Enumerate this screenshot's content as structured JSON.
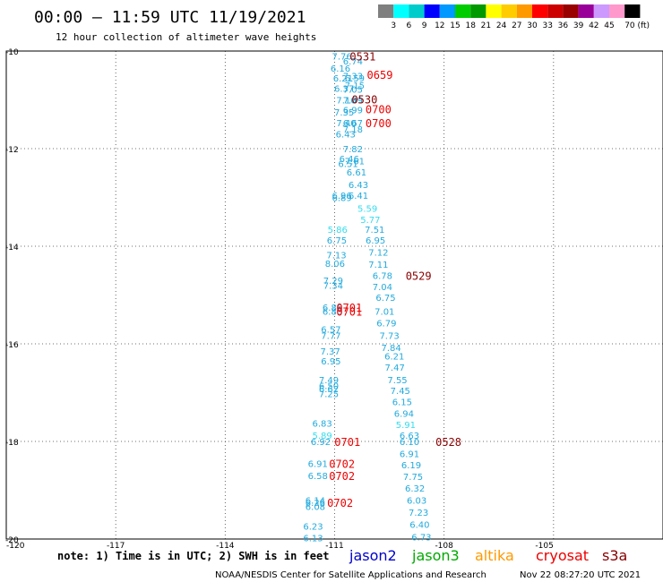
{
  "header": {
    "title": "00:00 — 11:59 UTC 11/19/2021",
    "subtitle": "12 hour collection of altimeter wave heights"
  },
  "colorbar": {
    "labels": [
      "3",
      "6",
      "9",
      "12",
      "15",
      "18",
      "21",
      "24",
      "27",
      "30",
      "33",
      "36",
      "39",
      "42",
      "45",
      "70 (ft)"
    ],
    "colors": [
      "#7f7f7f",
      "#00ffff",
      "#00cccc",
      "#0000ff",
      "#0099ff",
      "#00cc00",
      "#009900",
      "#ffff00",
      "#ffcc00",
      "#ff9900",
      "#ff0000",
      "#cc0000",
      "#990000",
      "#990099",
      "#cc99ff",
      "#ff99cc",
      "#000000"
    ]
  },
  "footer": {
    "note": "note: 1) Time is in UTC; 2) SWH is in feet",
    "credit": "NOAA/NESDIS Center for Satellite Applications and Research",
    "timestamp": "Nov 22 08:27:20 UTC 2021"
  },
  "chart_data": {
    "type": "scatter",
    "xlim": [
      -120,
      -102
    ],
    "ylim": [
      -20,
      -10
    ],
    "xticks": [
      -120,
      -117,
      -114,
      -111,
      -108,
      -105
    ],
    "xtick_labels": [
      "-120",
      "-117",
      "-114",
      "-111",
      "-108",
      "-105"
    ],
    "yticks": [
      -10,
      -12,
      -14,
      -16,
      -18,
      -20
    ],
    "grid": true,
    "legend": [
      {
        "name": "jason2",
        "color": "#0000cc"
      },
      {
        "name": "jason3",
        "color": "#00aa00"
      },
      {
        "name": "altika",
        "color": "#ff9900"
      },
      {
        "name": "cryosat",
        "color": "#ee0000"
      },
      {
        "name": "s3a",
        "color": "#880000"
      }
    ],
    "wave_color": "#22aadd",
    "light_wave_color": "#33ddee",
    "wave_heights": [
      {
        "x": -110.8,
        "y": -10.1,
        "v": "7.76"
      },
      {
        "x": -110.5,
        "y": -10.2,
        "v": "6.74"
      },
      {
        "x": -110.84,
        "y": -10.35,
        "v": "6.16"
      },
      {
        "x": -110.5,
        "y": -10.5,
        "v": "7.33"
      },
      {
        "x": -110.77,
        "y": -10.55,
        "v": "6.21"
      },
      {
        "x": -110.45,
        "y": -10.55,
        "v": "6.59"
      },
      {
        "x": -110.45,
        "y": -10.7,
        "v": "7.15"
      },
      {
        "x": -110.74,
        "y": -10.76,
        "v": "6.37"
      },
      {
        "x": -110.5,
        "y": -10.78,
        "v": "7.05"
      },
      {
        "x": -110.68,
        "y": -11.0,
        "v": "7.16"
      },
      {
        "x": -110.5,
        "y": -11.0,
        "v": "7.09"
      },
      {
        "x": -110.5,
        "y": -11.2,
        "v": "6.99"
      },
      {
        "x": -110.74,
        "y": -11.25,
        "v": "7.35"
      },
      {
        "x": -110.68,
        "y": -11.47,
        "v": "7.40"
      },
      {
        "x": -110.5,
        "y": -11.47,
        "v": "6.67"
      },
      {
        "x": -110.5,
        "y": -11.6,
        "v": "7.18"
      },
      {
        "x": -110.7,
        "y": -11.7,
        "v": "6.43"
      },
      {
        "x": -110.5,
        "y": -12.0,
        "v": "7.82"
      },
      {
        "x": -110.6,
        "y": -12.2,
        "v": "6.46"
      },
      {
        "x": -110.45,
        "y": -12.25,
        "v": "7.61"
      },
      {
        "x": -110.63,
        "y": -12.3,
        "v": "6.51"
      },
      {
        "x": -110.4,
        "y": -12.48,
        "v": "6.61"
      },
      {
        "x": -110.35,
        "y": -12.73,
        "v": "6.43"
      },
      {
        "x": -110.8,
        "y": -12.95,
        "v": "6.96"
      },
      {
        "x": -110.35,
        "y": -12.95,
        "v": "6.41"
      },
      {
        "x": -110.8,
        "y": -13.0,
        "v": "6.89"
      },
      {
        "x": -110.1,
        "y": -13.22,
        "v": "5.59"
      },
      {
        "x": -110.02,
        "y": -13.45,
        "v": "5.77"
      },
      {
        "x": -110.92,
        "y": -13.65,
        "v": "5.86"
      },
      {
        "x": -109.9,
        "y": -13.65,
        "v": "7.51"
      },
      {
        "x": -110.94,
        "y": -13.87,
        "v": "6.75"
      },
      {
        "x": -109.88,
        "y": -13.87,
        "v": "6.95"
      },
      {
        "x": -110.95,
        "y": -14.17,
        "v": "7.13"
      },
      {
        "x": -109.8,
        "y": -14.12,
        "v": "7.12"
      },
      {
        "x": -110.99,
        "y": -14.35,
        "v": "8.06"
      },
      {
        "x": -109.8,
        "y": -14.37,
        "v": "7.11"
      },
      {
        "x": -109.69,
        "y": -14.6,
        "v": "6.78"
      },
      {
        "x": -111.04,
        "y": -14.7,
        "v": "7.29"
      },
      {
        "x": -111.04,
        "y": -14.8,
        "v": "7.34"
      },
      {
        "x": -109.69,
        "y": -14.83,
        "v": "7.04"
      },
      {
        "x": -109.6,
        "y": -15.05,
        "v": "6.75"
      },
      {
        "x": -111.06,
        "y": -15.25,
        "v": "6.86"
      },
      {
        "x": -111.06,
        "y": -15.33,
        "v": "6.83"
      },
      {
        "x": -109.63,
        "y": -15.33,
        "v": "7.01"
      },
      {
        "x": -109.58,
        "y": -15.57,
        "v": "6.79"
      },
      {
        "x": -111.1,
        "y": -15.7,
        "v": "6.57"
      },
      {
        "x": -111.1,
        "y": -15.83,
        "v": "7.77"
      },
      {
        "x": -109.5,
        "y": -15.83,
        "v": "7.73"
      },
      {
        "x": -109.45,
        "y": -16.07,
        "v": "7.84"
      },
      {
        "x": -111.12,
        "y": -16.15,
        "v": "7.37"
      },
      {
        "x": -109.36,
        "y": -16.25,
        "v": "6.21"
      },
      {
        "x": -111.1,
        "y": -16.35,
        "v": "6.95"
      },
      {
        "x": -109.35,
        "y": -16.48,
        "v": "7.47"
      },
      {
        "x": -111.16,
        "y": -16.73,
        "v": "7.49"
      },
      {
        "x": -109.28,
        "y": -16.73,
        "v": "7.55"
      },
      {
        "x": -111.16,
        "y": -16.85,
        "v": "6.50"
      },
      {
        "x": -111.16,
        "y": -16.92,
        "v": "6.62"
      },
      {
        "x": -109.2,
        "y": -16.95,
        "v": "7.45"
      },
      {
        "x": -111.16,
        "y": -17.02,
        "v": "7.25"
      },
      {
        "x": -109.15,
        "y": -17.18,
        "v": "6.15"
      },
      {
        "x": -109.1,
        "y": -17.42,
        "v": "6.94"
      },
      {
        "x": -111.34,
        "y": -17.62,
        "v": "6.83"
      },
      {
        "x": -109.05,
        "y": -17.65,
        "v": "5.91"
      },
      {
        "x": -111.34,
        "y": -17.87,
        "v": "5.89"
      },
      {
        "x": -108.95,
        "y": -17.87,
        "v": "6.63"
      },
      {
        "x": -111.38,
        "y": -18.0,
        "v": "6.92"
      },
      {
        "x": -108.95,
        "y": -18.0,
        "v": "6.10"
      },
      {
        "x": -108.95,
        "y": -18.25,
        "v": "6.91"
      },
      {
        "x": -111.46,
        "y": -18.45,
        "v": "6.91"
      },
      {
        "x": -108.9,
        "y": -18.48,
        "v": "6.19"
      },
      {
        "x": -111.46,
        "y": -18.7,
        "v": "6.58"
      },
      {
        "x": -108.85,
        "y": -18.72,
        "v": "7.75"
      },
      {
        "x": -108.8,
        "y": -18.95,
        "v": "6.32"
      },
      {
        "x": -111.53,
        "y": -19.2,
        "v": "6.14"
      },
      {
        "x": -111.53,
        "y": -19.25,
        "v": "6.26"
      },
      {
        "x": -108.75,
        "y": -19.2,
        "v": "6.03"
      },
      {
        "x": -111.53,
        "y": -19.33,
        "v": "6.08"
      },
      {
        "x": -108.7,
        "y": -19.45,
        "v": "7.23"
      },
      {
        "x": -111.59,
        "y": -19.73,
        "v": "6.23"
      },
      {
        "x": -108.67,
        "y": -19.7,
        "v": "6.40"
      },
      {
        "x": -111.59,
        "y": -19.97,
        "v": "6.13"
      },
      {
        "x": -108.62,
        "y": -19.95,
        "v": "6.73"
      }
    ],
    "pass_times": [
      {
        "x": -110.23,
        "y": -10.1,
        "label": "0531",
        "satellite": "s3a"
      },
      {
        "x": -109.76,
        "y": -10.48,
        "label": "0659",
        "satellite": "cryosat"
      },
      {
        "x": -110.18,
        "y": -10.98,
        "label": "0530",
        "satellite": "s3a"
      },
      {
        "x": -109.8,
        "y": -11.18,
        "label": "0700",
        "satellite": "cryosat"
      },
      {
        "x": -109.8,
        "y": -11.47,
        "label": "0700",
        "satellite": "cryosat"
      },
      {
        "x": -108.7,
        "y": -14.6,
        "label": "0529",
        "satellite": "s3a"
      },
      {
        "x": -110.6,
        "y": -15.25,
        "label": "0701",
        "satellite": "cryosat"
      },
      {
        "x": -110.6,
        "y": -15.33,
        "label": "0701",
        "satellite": "cryosat"
      },
      {
        "x": -110.65,
        "y": -18.0,
        "label": "0701",
        "satellite": "cryosat"
      },
      {
        "x": -107.88,
        "y": -18.0,
        "label": "0528",
        "satellite": "s3a"
      },
      {
        "x": -110.8,
        "y": -18.45,
        "label": "0702",
        "satellite": "cryosat"
      },
      {
        "x": -110.8,
        "y": -18.7,
        "label": "0702",
        "satellite": "cryosat"
      },
      {
        "x": -110.85,
        "y": -19.25,
        "label": "0702",
        "satellite": "cryosat"
      }
    ]
  }
}
